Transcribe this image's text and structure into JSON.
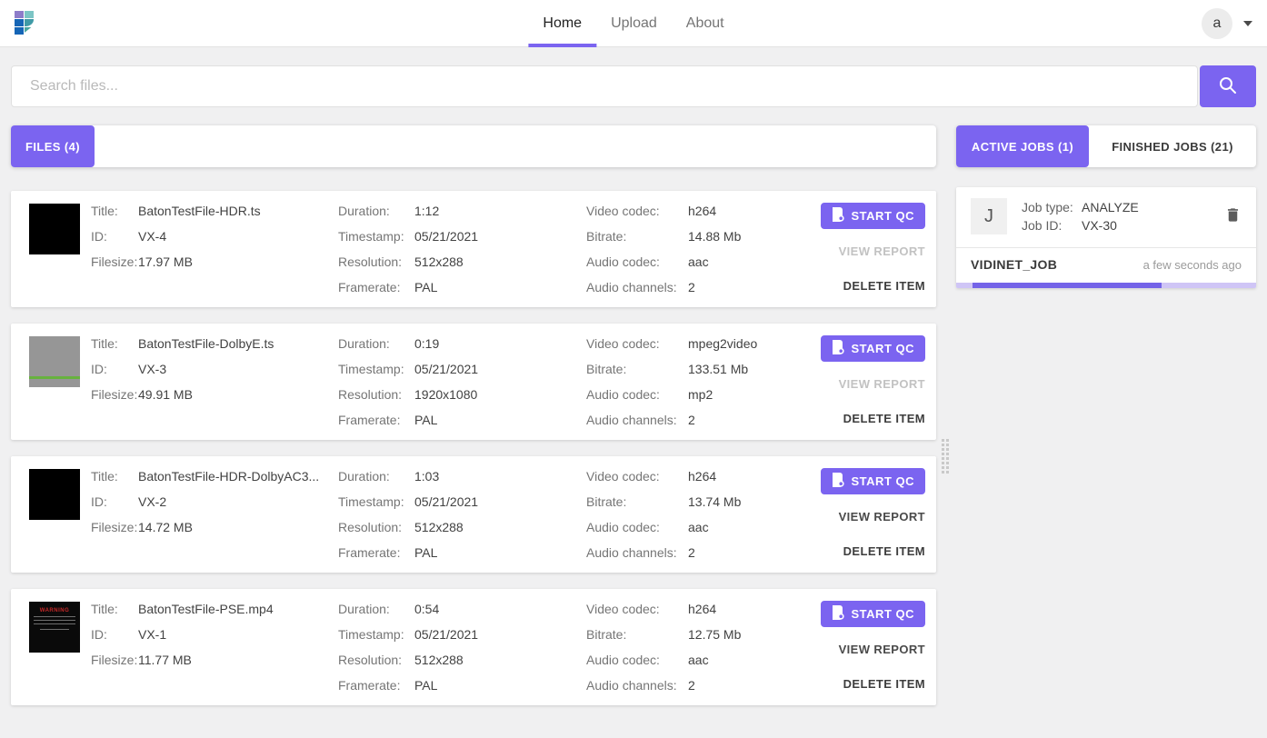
{
  "header": {
    "nav": [
      {
        "label": "Home",
        "active": true
      },
      {
        "label": "Upload",
        "active": false
      },
      {
        "label": "About",
        "active": false
      }
    ],
    "avatar_initial": "a"
  },
  "search": {
    "placeholder": "Search files..."
  },
  "files_panel": {
    "tab_label": "FILES (4)"
  },
  "field_labels": {
    "title": "Title:",
    "id": "ID:",
    "filesize": "Filesize:",
    "duration": "Duration:",
    "timestamp": "Timestamp:",
    "resolution": "Resolution:",
    "framerate": "Framerate:",
    "video_codec": "Video codec:",
    "bitrate": "Bitrate:",
    "audio_codec": "Audio codec:",
    "audio_channels": "Audio channels:"
  },
  "actions": {
    "start_qc": "START QC",
    "view_report": "VIEW REPORT",
    "delete_item": "DELETE ITEM"
  },
  "files": [
    {
      "title": "BatonTestFile-HDR.ts",
      "id": "VX-4",
      "filesize": "17.97 MB",
      "duration": "1:12",
      "timestamp": "05/21/2021",
      "resolution": "512x288",
      "framerate": "PAL",
      "video_codec": "h264",
      "bitrate": "14.88 Mb",
      "audio_codec": "aac",
      "audio_channels": "2",
      "view_report_enabled": false,
      "thumbnail": "solid-black"
    },
    {
      "title": "BatonTestFile-DolbyE.ts",
      "id": "VX-3",
      "filesize": "49.91 MB",
      "duration": "0:19",
      "timestamp": "05/21/2021",
      "resolution": "1920x1080",
      "framerate": "PAL",
      "video_codec": "mpeg2video",
      "bitrate": "133.51 Mb",
      "audio_codec": "mp2",
      "audio_channels": "2",
      "view_report_enabled": false,
      "thumbnail": "gray-green-stripe"
    },
    {
      "title": "BatonTestFile-HDR-DolbyAC3...",
      "id": "VX-2",
      "filesize": "14.72 MB",
      "duration": "1:03",
      "timestamp": "05/21/2021",
      "resolution": "512x288",
      "framerate": "PAL",
      "video_codec": "h264",
      "bitrate": "13.74 Mb",
      "audio_codec": "aac",
      "audio_channels": "2",
      "view_report_enabled": true,
      "thumbnail": "solid-black"
    },
    {
      "title": "BatonTestFile-PSE.mp4",
      "id": "VX-1",
      "filesize": "11.77 MB",
      "duration": "0:54",
      "timestamp": "05/21/2021",
      "resolution": "512x288",
      "framerate": "PAL",
      "video_codec": "h264",
      "bitrate": "12.75 Mb",
      "audio_codec": "aac",
      "audio_channels": "2",
      "view_report_enabled": true,
      "thumbnail": "warning-card",
      "thumbnail_text": "WARNING"
    }
  ],
  "jobs_panel": {
    "active_tab": "ACTIVE JOBS (1)",
    "finished_tab": "FINISHED JOBS (21)",
    "job": {
      "initial": "J",
      "type_label": "Job type:",
      "type": "ANALYZE",
      "id_label": "Job ID:",
      "id": "VX-30",
      "name": "VIDINET_JOB",
      "time": "a few seconds ago",
      "progress_offset_percent": 5.5,
      "progress_width_percent": 63
    }
  },
  "colors": {
    "accent": "#7b64f0",
    "progress_track": "#cfc5f6",
    "progress_fill": "#7463e8"
  }
}
